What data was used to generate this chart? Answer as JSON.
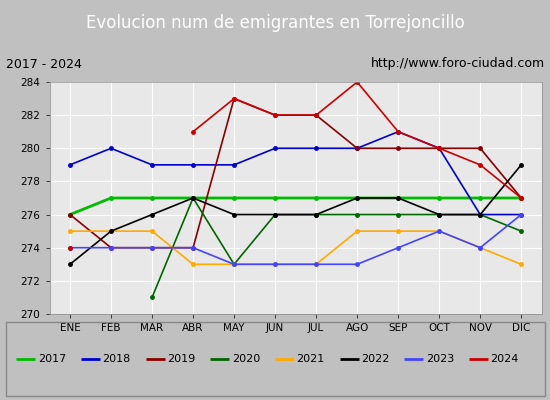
{
  "title": "Evolucion num de emigrantes en Torrejoncillo",
  "subtitle_left": "2017 - 2024",
  "subtitle_right": "http://www.foro-ciudad.com",
  "months": [
    "ENE",
    "FEB",
    "MAR",
    "ABR",
    "MAY",
    "JUN",
    "JUL",
    "AGO",
    "SEP",
    "OCT",
    "NOV",
    "DIC"
  ],
  "ylim": [
    270,
    284
  ],
  "yticks": [
    270,
    272,
    274,
    276,
    278,
    280,
    282,
    284
  ],
  "series": {
    "2017": {
      "color": "#00bb00",
      "values": [
        276,
        277,
        277,
        277,
        277,
        277,
        277,
        277,
        277,
        277,
        277,
        277
      ],
      "lw": 2.0
    },
    "2018": {
      "color": "#0000cc",
      "values": [
        279,
        280,
        279,
        279,
        279,
        280,
        280,
        280,
        281,
        280,
        276,
        276
      ],
      "lw": 1.2
    },
    "2019": {
      "color": "#880000",
      "values": [
        276,
        274,
        274,
        274,
        283,
        282,
        282,
        280,
        280,
        280,
        280,
        277
      ],
      "lw": 1.2
    },
    "2020": {
      "color": "#006600",
      "values": [
        null,
        null,
        271,
        277,
        273,
        276,
        276,
        276,
        276,
        276,
        276,
        275
      ],
      "lw": 1.2
    },
    "2021": {
      "color": "#ffaa00",
      "values": [
        275,
        275,
        275,
        273,
        273,
        273,
        273,
        275,
        275,
        275,
        274,
        273
      ],
      "lw": 1.2
    },
    "2022": {
      "color": "#000000",
      "values": [
        273,
        275,
        276,
        277,
        276,
        276,
        276,
        277,
        277,
        276,
        276,
        279
      ],
      "lw": 1.2
    },
    "2023": {
      "color": "#4444ff",
      "values": [
        274,
        274,
        274,
        274,
        273,
        273,
        273,
        273,
        274,
        275,
        274,
        276
      ],
      "lw": 1.2
    },
    "2024": {
      "color": "#cc0000",
      "values": [
        274,
        null,
        null,
        281,
        283,
        282,
        282,
        284,
        281,
        280,
        279,
        277
      ],
      "lw": 1.2
    }
  },
  "title_bg_color": "#3a6fbf",
  "title_text_color": "#ffffff",
  "plot_bg_color": "#e8e8e8",
  "grid_color": "#ffffff",
  "subtitle_bg_color": "#d0d0d0",
  "legend_bg_color": "#f0f0f0"
}
